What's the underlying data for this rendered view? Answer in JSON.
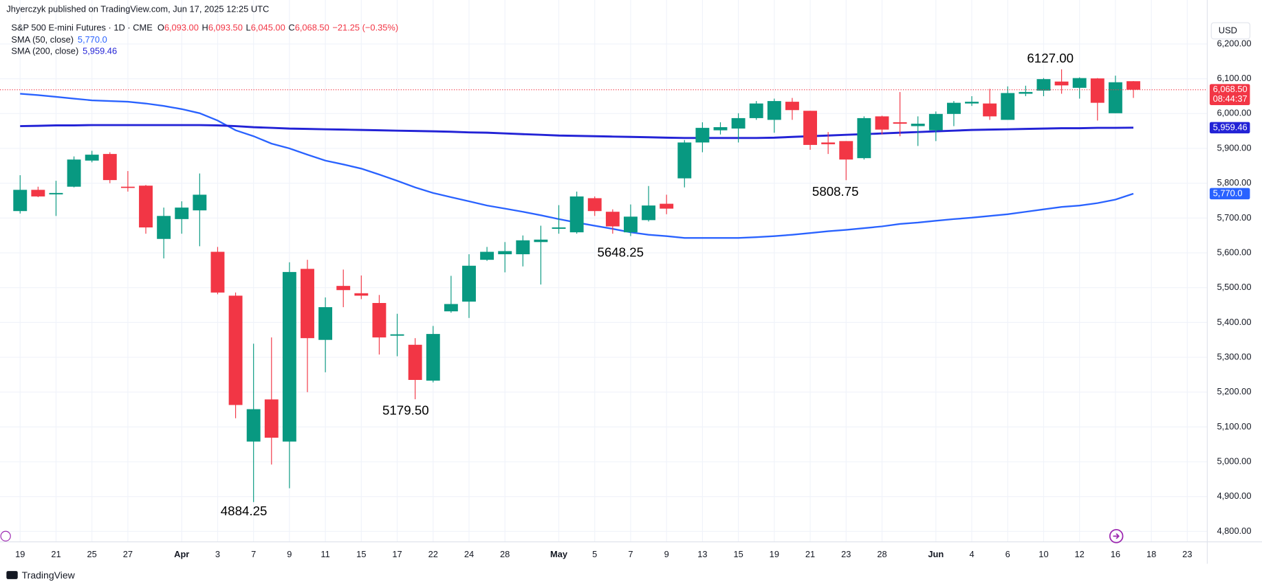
{
  "header": {
    "published": "Jhyerczyk published on TradingView.com, Jun 17, 2025 12:25 UTC"
  },
  "legend": {
    "title": "S&P 500 E-mini Futures · 1D · CME",
    "ohlc": [
      {
        "key": "O",
        "text": "6,093.00"
      },
      {
        "key": "H",
        "text": "6,093.50"
      },
      {
        "key": "L",
        "text": "6,045.00"
      },
      {
        "key": "C",
        "text": "6,068.50"
      }
    ],
    "change": "−21.25 (−0.35%)",
    "sma": [
      {
        "text": "5,770.0"
      },
      {
        "text": "5,959.46"
      }
    ]
  },
  "footer": {
    "brand": "TradingView"
  },
  "chart_data": {
    "type": "candlestick",
    "currency": "USD",
    "up_color": "#089981",
    "down_color": "#f23645",
    "open": [
      5720,
      5781,
      5768,
      5790,
      5865,
      5884,
      5790,
      5793,
      5640,
      5697,
      5722,
      5603,
      5477,
      5058,
      5179,
      5058,
      5554,
      5350,
      5505,
      5484,
      5456,
      5362,
      5336,
      5233,
      5432,
      5460,
      5580,
      5596,
      5596,
      5631,
      5669,
      5659,
      5757,
      5718,
      5659,
      5694,
      5741,
      5814,
      5917,
      5952,
      5957,
      5987,
      5982,
      6034,
      6008,
      5917,
      5921,
      5872,
      5992,
      5975,
      5964,
      5952,
      5999,
      6029,
      6029,
      5982,
      6057,
      6066,
      6092,
      6074,
      6101,
      6001,
      6093
    ],
    "high": [
      5823,
      5790,
      5807,
      5877,
      5893,
      5889,
      5835,
      5795,
      5730,
      5748,
      5828,
      5617,
      5486,
      5339,
      5357,
      5573,
      5580,
      5472,
      5552,
      5535,
      5479,
      5425,
      5355,
      5390,
      5534,
      5596,
      5617,
      5631,
      5650,
      5678,
      5737,
      5776,
      5762,
      5725,
      5739,
      5792,
      5767,
      5924,
      5975,
      5975,
      6001,
      6036,
      6043,
      6045,
      6008,
      5947,
      5921,
      5992,
      5994,
      6062,
      5992,
      6006,
      6036,
      6050,
      6071,
      6078,
      6080,
      6102,
      6127,
      6104,
      6102,
      6109,
      6093.5
    ],
    "low": [
      5713,
      5760,
      5706,
      5788,
      5860,
      5800,
      5776,
      5655,
      5584,
      5655,
      5619,
      5481,
      5125,
      4884.25,
      4992,
      4924,
      5200,
      5257,
      5444,
      5467,
      5308,
      5303,
      5179.5,
      5228,
      5428,
      5413,
      5577,
      5544,
      5561,
      5509,
      5655,
      5655,
      5706,
      5655,
      5648.25,
      5690,
      5711,
      5788,
      5889,
      5940,
      5917,
      5982,
      5945,
      5982,
      5896,
      5884,
      5808.75,
      5868,
      5940,
      5935,
      5907,
      5921,
      5964,
      6022,
      5982,
      5982,
      6050,
      6050,
      6057,
      6043,
      5980,
      6001,
      6045
    ],
    "close": [
      5781,
      5762,
      5772,
      5868,
      5882,
      5809,
      5788,
      5673,
      5706,
      5730,
      5767,
      5486,
      5163,
      5151,
      5069,
      5545,
      5355,
      5444,
      5493,
      5477,
      5357,
      5366,
      5235,
      5367,
      5453,
      5563,
      5603,
      5605,
      5636,
      5638,
      5673,
      5762,
      5720,
      5676,
      5704,
      5736,
      5727,
      5917,
      5959,
      5961,
      5987,
      6029,
      6036,
      6010,
      5910,
      5912,
      5868,
      5987,
      5954,
      5971,
      5971,
      5999,
      6031,
      6034,
      5992,
      6059,
      6062,
      6099,
      6081,
      6102,
      6031,
      6090,
      6068.5
    ],
    "series": [
      {
        "name": "SMA (50, close)",
        "color": "#2962ff",
        "values": [
          6057,
          6053,
          6048,
          6043,
          6038,
          6036,
          6034,
          6029,
          6022,
          6013,
          6001,
          5980,
          5952,
          5935,
          5914,
          5900,
          5882,
          5865,
          5854,
          5842,
          5825,
          5807,
          5788,
          5772,
          5760,
          5748,
          5736,
          5727,
          5718,
          5708,
          5697,
          5687,
          5678,
          5669,
          5659,
          5652,
          5648,
          5643,
          5643,
          5643,
          5643,
          5645,
          5648,
          5652,
          5657,
          5662,
          5666,
          5671,
          5676,
          5683,
          5687,
          5692,
          5697,
          5701,
          5706,
          5711,
          5718,
          5725,
          5732,
          5736,
          5743,
          5753,
          5770
        ]
      },
      {
        "name": "SMA (200, close)",
        "color": "#2323d6",
        "values": [
          5964,
          5965,
          5966,
          5966,
          5967,
          5967,
          5967,
          5967,
          5967,
          5967,
          5967,
          5966,
          5964,
          5961,
          5959,
          5957,
          5956,
          5955,
          5954,
          5953,
          5952,
          5951,
          5950,
          5949,
          5948,
          5946,
          5945,
          5943,
          5941,
          5939,
          5937,
          5936,
          5935,
          5934,
          5933,
          5932,
          5931,
          5930,
          5930,
          5930,
          5930,
          5930,
          5931,
          5933,
          5935,
          5937,
          5939,
          5941,
          5943,
          5945,
          5947,
          5949,
          5951,
          5953,
          5954,
          5955,
          5956,
          5957,
          5958,
          5958,
          5959,
          5959,
          5959.46
        ]
      }
    ],
    "price_labels": {
      "last": "6,068.50",
      "countdown": "08:44:37",
      "sma50": "5,770.0",
      "sma200": "5,959.46"
    },
    "annotations": [
      "6127.00",
      "5808.75",
      "5648.25",
      "5179.50",
      "4884.25"
    ],
    "ylim": [
      4770,
      6275
    ],
    "yticks": [
      {
        "value": 4800,
        "label": "4,800.00"
      },
      {
        "value": 4900,
        "label": "4,900.00"
      },
      {
        "value": 5000,
        "label": "5,000.00"
      },
      {
        "value": 5100,
        "label": "5,100.00"
      },
      {
        "value": 5200,
        "label": "5,200.00"
      },
      {
        "value": 5300,
        "label": "5,300.00"
      },
      {
        "value": 5400,
        "label": "5,400.00"
      },
      {
        "value": 5500,
        "label": "5,500.00"
      },
      {
        "value": 5600,
        "label": "5,600.00"
      },
      {
        "value": 5700,
        "label": "5,700.00"
      },
      {
        "value": 5800,
        "label": "5,800.00"
      },
      {
        "value": 5900,
        "label": "5,900.00"
      },
      {
        "value": 6000,
        "label": "6,000.00"
      },
      {
        "value": 6100,
        "label": "6,100.00"
      },
      {
        "value": 6200,
        "label": "6,200.00"
      }
    ],
    "xticks": [
      {
        "value": 0,
        "label": "19"
      },
      {
        "value": 2,
        "label": "21"
      },
      {
        "value": 4,
        "label": "25"
      },
      {
        "value": 6,
        "label": "27"
      },
      {
        "value": 9,
        "label": "Apr"
      },
      {
        "value": 11,
        "label": "3"
      },
      {
        "value": 13,
        "label": "7"
      },
      {
        "value": 15,
        "label": "9"
      },
      {
        "value": 17,
        "label": "11"
      },
      {
        "value": 19,
        "label": "15"
      },
      {
        "value": 21,
        "label": "17"
      },
      {
        "value": 23,
        "label": "22"
      },
      {
        "value": 25,
        "label": "24"
      },
      {
        "value": 27,
        "label": "28"
      },
      {
        "value": 30,
        "label": "May"
      },
      {
        "value": 32,
        "label": "5"
      },
      {
        "value": 34,
        "label": "7"
      },
      {
        "value": 36,
        "label": "9"
      },
      {
        "value": 38,
        "label": "13"
      },
      {
        "value": 40,
        "label": "15"
      },
      {
        "value": 42,
        "label": "19"
      },
      {
        "value": 44,
        "label": "21"
      },
      {
        "value": 46,
        "label": "23"
      },
      {
        "value": 48,
        "label": "28"
      },
      {
        "value": 51,
        "label": "Jun"
      },
      {
        "value": 53,
        "label": "4"
      },
      {
        "value": 55,
        "label": "6"
      },
      {
        "value": 57,
        "label": "10"
      },
      {
        "value": 59,
        "label": "12"
      },
      {
        "value": 61,
        "label": "16"
      },
      {
        "value": 63,
        "label": "18"
      },
      {
        "value": 65,
        "label": "23"
      }
    ],
    "grid": true
  }
}
